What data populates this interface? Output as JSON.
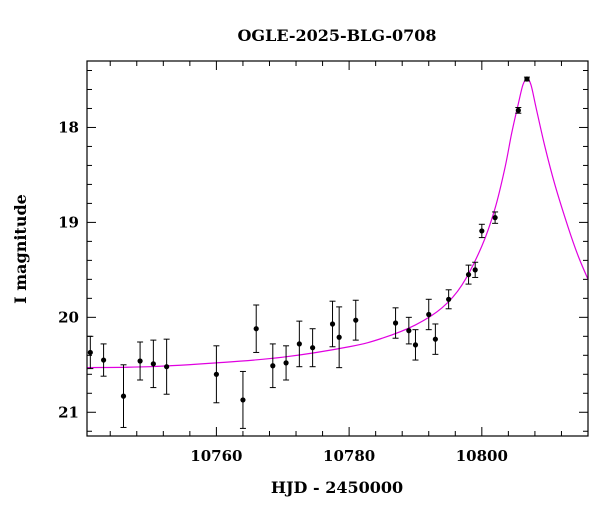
{
  "chart_data": {
    "type": "scatter",
    "title": "OGLE-2025-BLG-0708",
    "xlabel": "HJD - 2450000",
    "ylabel": "I magnitude",
    "xlim": [
      10740.5,
      10816
    ],
    "ylim": [
      21.25,
      17.3
    ],
    "y_inverted": true,
    "grid": false,
    "x_ticks": [
      10760,
      10780,
      10800
    ],
    "y_ticks": [
      18,
      19,
      20,
      21
    ],
    "x_minor_step": 4,
    "y_minor_step": 0.2,
    "series": [
      {
        "kind": "observations",
        "marker_color": "#000000",
        "points": [
          {
            "x": 10741.0,
            "y": 20.37,
            "err": 0.17
          },
          {
            "x": 10743.0,
            "y": 20.45,
            "err": 0.17
          },
          {
            "x": 10746.0,
            "y": 20.83,
            "err": 0.33
          },
          {
            "x": 10748.5,
            "y": 20.46,
            "err": 0.2
          },
          {
            "x": 10750.5,
            "y": 20.49,
            "err": 0.25
          },
          {
            "x": 10752.5,
            "y": 20.52,
            "err": 0.29
          },
          {
            "x": 10760.0,
            "y": 20.6,
            "err": 0.3
          },
          {
            "x": 10764.0,
            "y": 20.87,
            "err": 0.3
          },
          {
            "x": 10766.0,
            "y": 20.12,
            "err": 0.25
          },
          {
            "x": 10768.5,
            "y": 20.51,
            "err": 0.23
          },
          {
            "x": 10770.5,
            "y": 20.48,
            "err": 0.18
          },
          {
            "x": 10772.5,
            "y": 20.28,
            "err": 0.24
          },
          {
            "x": 10774.5,
            "y": 20.32,
            "err": 0.2
          },
          {
            "x": 10777.5,
            "y": 20.07,
            "err": 0.24
          },
          {
            "x": 10778.5,
            "y": 20.21,
            "err": 0.32
          },
          {
            "x": 10781.0,
            "y": 20.03,
            "err": 0.21
          },
          {
            "x": 10787.0,
            "y": 20.06,
            "err": 0.16
          },
          {
            "x": 10789.0,
            "y": 20.14,
            "err": 0.14
          },
          {
            "x": 10790.0,
            "y": 20.29,
            "err": 0.16
          },
          {
            "x": 10792.0,
            "y": 19.97,
            "err": 0.16
          },
          {
            "x": 10793.0,
            "y": 20.23,
            "err": 0.16
          },
          {
            "x": 10795.0,
            "y": 19.81,
            "err": 0.1
          },
          {
            "x": 10798.0,
            "y": 19.55,
            "err": 0.1
          },
          {
            "x": 10799.0,
            "y": 19.5,
            "err": 0.08
          },
          {
            "x": 10800.0,
            "y": 19.09,
            "err": 0.07
          },
          {
            "x": 10802.0,
            "y": 18.95,
            "err": 0.06
          },
          {
            "x": 10805.5,
            "y": 17.82,
            "err": 0.03
          },
          {
            "x": 10806.8,
            "y": 17.49,
            "err": 0.02
          }
        ]
      },
      {
        "kind": "model",
        "line_color": "#e000e0",
        "points": [
          {
            "x": 10740.5,
            "y": 20.53
          },
          {
            "x": 10750,
            "y": 20.52
          },
          {
            "x": 10760,
            "y": 20.48
          },
          {
            "x": 10770,
            "y": 20.42
          },
          {
            "x": 10780,
            "y": 20.31
          },
          {
            "x": 10785,
            "y": 20.22
          },
          {
            "x": 10790,
            "y": 20.08
          },
          {
            "x": 10794,
            "y": 19.9
          },
          {
            "x": 10797,
            "y": 19.66
          },
          {
            "x": 10800,
            "y": 19.25
          },
          {
            "x": 10802,
            "y": 18.85
          },
          {
            "x": 10803.5,
            "y": 18.42
          },
          {
            "x": 10804.5,
            "y": 18.06
          },
          {
            "x": 10805.5,
            "y": 17.75
          },
          {
            "x": 10806.2,
            "y": 17.55
          },
          {
            "x": 10806.8,
            "y": 17.49
          },
          {
            "x": 10807.4,
            "y": 17.55
          },
          {
            "x": 10808.2,
            "y": 17.8
          },
          {
            "x": 10809.5,
            "y": 18.2
          },
          {
            "x": 10811,
            "y": 18.6
          },
          {
            "x": 10813,
            "y": 19.05
          },
          {
            "x": 10814.5,
            "y": 19.35
          },
          {
            "x": 10816,
            "y": 19.6
          }
        ]
      }
    ]
  }
}
